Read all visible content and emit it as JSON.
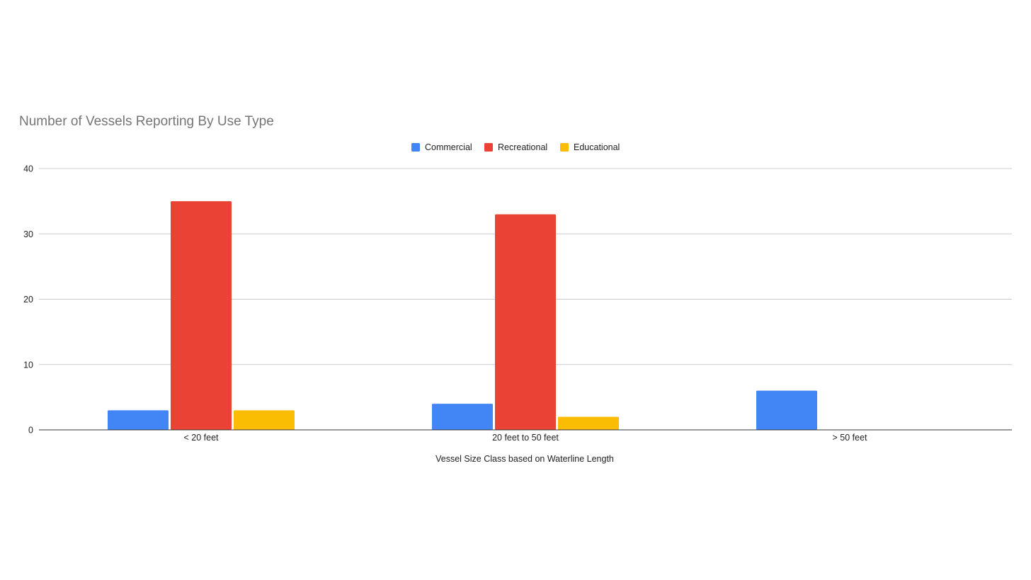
{
  "chart_data": {
    "type": "bar",
    "title": "Number of Vessels Reporting By Use Type",
    "xlabel": "Vessel Size Class based on Waterline Length",
    "ylabel": "",
    "categories": [
      "< 20 feet",
      "20 feet to 50 feet",
      "> 50 feet"
    ],
    "series": [
      {
        "name": "Commercial",
        "color": "#4285f4",
        "values": [
          3,
          4,
          6
        ]
      },
      {
        "name": "Recreational",
        "color": "#ea4335",
        "values": [
          35,
          33,
          0
        ]
      },
      {
        "name": "Educational",
        "color": "#fbbc04",
        "values": [
          3,
          2,
          0
        ]
      }
    ],
    "ylim": [
      0,
      40
    ],
    "yticks": [
      "0",
      "10",
      "20",
      "30",
      "40"
    ],
    "grid": true,
    "legend_position": "top"
  }
}
